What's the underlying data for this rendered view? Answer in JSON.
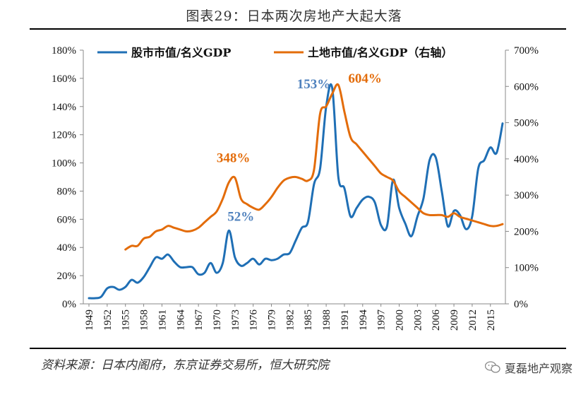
{
  "title": "图表29：日本两次房地产大起大落",
  "source": "资料来源：日本内阁府，东京证券交易所，恒大研究院",
  "watermark": "夏磊地产观察",
  "colors": {
    "stock": "#1f6fb5",
    "land": "#e36c0a",
    "anno_stock": "#4f81bd"
  },
  "chart_data": {
    "type": "line",
    "title": "图表29：日本两次房地产大起大落",
    "left_axis": {
      "min": 0,
      "max": 180,
      "step": 20,
      "unit": "%",
      "ticks": [
        "0%",
        "20%",
        "40%",
        "60%",
        "80%",
        "100%",
        "120%",
        "140%",
        "160%",
        "180%"
      ]
    },
    "right_axis": {
      "min": 0,
      "max": 700,
      "step": 100,
      "unit": "%",
      "ticks": [
        "0%",
        "100%",
        "200%",
        "300%",
        "400%",
        "500%",
        "600%",
        "700%"
      ]
    },
    "x_ticks": [
      "1949",
      "1952",
      "1955",
      "1958",
      "1961",
      "1964",
      "1967",
      "1970",
      "1973",
      "1976",
      "1979",
      "1982",
      "1985",
      "1988",
      "1991",
      "1994",
      "1997",
      "2000",
      "2003",
      "2006",
      "2009",
      "2012",
      "2015"
    ],
    "series": [
      {
        "name": "股市市值/名义GDP",
        "axis": "left",
        "color": "#1f6fb5",
        "points": [
          [
            1949,
            4
          ],
          [
            1950,
            4
          ],
          [
            1951,
            5
          ],
          [
            1952,
            11
          ],
          [
            1953,
            12
          ],
          [
            1954,
            10
          ],
          [
            1955,
            12
          ],
          [
            1956,
            17
          ],
          [
            1957,
            15
          ],
          [
            1958,
            19
          ],
          [
            1959,
            26
          ],
          [
            1960,
            33
          ],
          [
            1961,
            32
          ],
          [
            1962,
            35
          ],
          [
            1963,
            30
          ],
          [
            1964,
            26
          ],
          [
            1965,
            26
          ],
          [
            1966,
            26
          ],
          [
            1967,
            21
          ],
          [
            1968,
            22
          ],
          [
            1969,
            29
          ],
          [
            1970,
            22
          ],
          [
            1971,
            29
          ],
          [
            1972,
            52
          ],
          [
            1973,
            33
          ],
          [
            1974,
            27
          ],
          [
            1975,
            29
          ],
          [
            1976,
            32
          ],
          [
            1977,
            28
          ],
          [
            1978,
            32
          ],
          [
            1979,
            31
          ],
          [
            1980,
            32
          ],
          [
            1981,
            35
          ],
          [
            1982,
            36
          ],
          [
            1983,
            45
          ],
          [
            1984,
            54
          ],
          [
            1985,
            58
          ],
          [
            1986,
            85
          ],
          [
            1987,
            96
          ],
          [
            1988,
            140
          ],
          [
            1989,
            153
          ],
          [
            1990,
            90
          ],
          [
            1991,
            82
          ],
          [
            1992,
            62
          ],
          [
            1993,
            68
          ],
          [
            1994,
            74
          ],
          [
            1995,
            76
          ],
          [
            1996,
            72
          ],
          [
            1997,
            56
          ],
          [
            1998,
            55
          ],
          [
            1999,
            88
          ],
          [
            2000,
            68
          ],
          [
            2001,
            57
          ],
          [
            2002,
            48
          ],
          [
            2003,
            62
          ],
          [
            2004,
            75
          ],
          [
            2005,
            102
          ],
          [
            2006,
            104
          ],
          [
            2007,
            80
          ],
          [
            2008,
            55
          ],
          [
            2009,
            66
          ],
          [
            2010,
            63
          ],
          [
            2011,
            53
          ],
          [
            2012,
            62
          ],
          [
            2013,
            96
          ],
          [
            2014,
            102
          ],
          [
            2015,
            111
          ],
          [
            2016,
            107
          ],
          [
            2017,
            128
          ]
        ]
      },
      {
        "name": "土地市值/名义GDP（右轴）",
        "axis": "right",
        "color": "#e36c0a",
        "points": [
          [
            1955,
            150
          ],
          [
            1956,
            160
          ],
          [
            1957,
            160
          ],
          [
            1958,
            180
          ],
          [
            1959,
            185
          ],
          [
            1960,
            200
          ],
          [
            1961,
            205
          ],
          [
            1962,
            215
          ],
          [
            1963,
            210
          ],
          [
            1964,
            205
          ],
          [
            1965,
            200
          ],
          [
            1966,
            202
          ],
          [
            1967,
            210
          ],
          [
            1968,
            225
          ],
          [
            1969,
            240
          ],
          [
            1970,
            255
          ],
          [
            1971,
            290
          ],
          [
            1972,
            335
          ],
          [
            1973,
            348
          ],
          [
            1974,
            290
          ],
          [
            1975,
            275
          ],
          [
            1976,
            265
          ],
          [
            1977,
            260
          ],
          [
            1978,
            275
          ],
          [
            1979,
            295
          ],
          [
            1980,
            320
          ],
          [
            1981,
            340
          ],
          [
            1982,
            348
          ],
          [
            1983,
            350
          ],
          [
            1984,
            345
          ],
          [
            1985,
            340
          ],
          [
            1986,
            370
          ],
          [
            1987,
            525
          ],
          [
            1988,
            545
          ],
          [
            1989,
            580
          ],
          [
            1990,
            604
          ],
          [
            1991,
            530
          ],
          [
            1992,
            460
          ],
          [
            1993,
            440
          ],
          [
            1994,
            420
          ],
          [
            1995,
            400
          ],
          [
            1996,
            380
          ],
          [
            1997,
            360
          ],
          [
            1998,
            350
          ],
          [
            1999,
            340
          ],
          [
            2000,
            310
          ],
          [
            2001,
            295
          ],
          [
            2002,
            280
          ],
          [
            2003,
            265
          ],
          [
            2004,
            250
          ],
          [
            2005,
            245
          ],
          [
            2006,
            245
          ],
          [
            2007,
            245
          ],
          [
            2008,
            240
          ],
          [
            2009,
            250
          ],
          [
            2010,
            240
          ],
          [
            2011,
            235
          ],
          [
            2012,
            230
          ],
          [
            2013,
            225
          ],
          [
            2014,
            220
          ],
          [
            2015,
            215
          ],
          [
            2016,
            215
          ],
          [
            2017,
            220
          ]
        ]
      }
    ],
    "annotations": [
      {
        "text": "348%",
        "series": "land",
        "x": 1973
      },
      {
        "text": "52%",
        "series": "stock",
        "x": 1972
      },
      {
        "text": "153%",
        "series": "stock",
        "x": 1989
      },
      {
        "text": "604%",
        "series": "land",
        "x": 1990
      }
    ]
  }
}
